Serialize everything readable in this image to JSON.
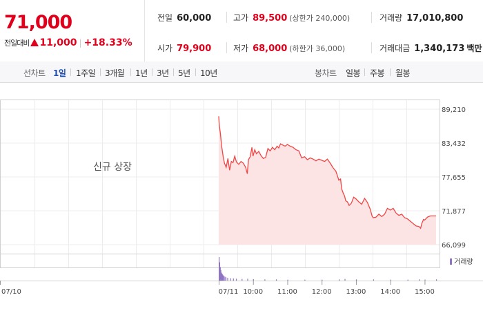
{
  "header": {
    "current_price": "71,000",
    "change_label": "전일대비",
    "change_amount": "11,000",
    "change_rate": "+18.33%",
    "stats": {
      "prev_close": {
        "label": "전일",
        "value": "60,000"
      },
      "high": {
        "label": "고가",
        "value": "89,500",
        "sub": "(상한가 240,000)"
      },
      "volume": {
        "label": "거래량",
        "value": "17,010,800"
      },
      "open": {
        "label": "시가",
        "value": "79,900"
      },
      "low": {
        "label": "저가",
        "value": "68,000",
        "sub": "(하한가 36,000)"
      },
      "trade_value": {
        "label": "거래대금",
        "value": "1,340,173",
        "unit": "백만"
      }
    }
  },
  "tabs": {
    "line_label": "선차트",
    "line_items": [
      "1일",
      "1주일",
      "3개월",
      "1년",
      "3년",
      "5년",
      "10년"
    ],
    "active": "1일",
    "candle_label": "봉차트",
    "candle_items": [
      "일봉",
      "주봉",
      "월봉"
    ]
  },
  "colors": {
    "up": "#e0001b",
    "line": "#f04545",
    "fill": "#fde4e4",
    "volume": "#8f74c4",
    "active_tab": "#1f4eb4"
  },
  "chart_data": {
    "type": "area",
    "annotation": "신규 상장",
    "y_ticks": [
      "89,210",
      "83,432",
      "77,655",
      "71,877",
      "66,099"
    ],
    "ylim": [
      66099,
      89210
    ],
    "x_ticks": [
      "07/10",
      "07/11",
      "10:00",
      "11:00",
      "12:00",
      "13:00",
      "14:00",
      "15:00"
    ],
    "grid": true,
    "legend": "거래량",
    "price_series": [
      [
        "09:00",
        88000
      ],
      [
        "09:01",
        86500
      ],
      [
        "09:03",
        85000
      ],
      [
        "09:05",
        83000
      ],
      [
        "09:08",
        81000
      ],
      [
        "09:10",
        80000
      ],
      [
        "09:13",
        79300
      ],
      [
        "09:16",
        80800
      ],
      [
        "09:19",
        78800
      ],
      [
        "09:22",
        80300
      ],
      [
        "09:25",
        80100
      ],
      [
        "09:28",
        81200
      ],
      [
        "09:31",
        80200
      ],
      [
        "09:35",
        79800
      ],
      [
        "09:39",
        80300
      ],
      [
        "09:43",
        80000
      ],
      [
        "09:47",
        79300
      ],
      [
        "09:50",
        78200
      ],
      [
        "09:52",
        80600
      ],
      [
        "09:55",
        81100
      ],
      [
        "09:58",
        82700
      ],
      [
        "10:00",
        81200
      ],
      [
        "10:03",
        82300
      ],
      [
        "10:06",
        81600
      ],
      [
        "10:10",
        82000
      ],
      [
        "10:14",
        81300
      ],
      [
        "10:18",
        80800
      ],
      [
        "10:22",
        81000
      ],
      [
        "10:26",
        82500
      ],
      [
        "10:30",
        82100
      ],
      [
        "10:34",
        82700
      ],
      [
        "10:38",
        82300
      ],
      [
        "10:42",
        82900
      ],
      [
        "10:45",
        82600
      ],
      [
        "10:48",
        83300
      ],
      [
        "10:52",
        83100
      ],
      [
        "10:56",
        82900
      ],
      [
        "11:00",
        83200
      ],
      [
        "11:05",
        82900
      ],
      [
        "11:10",
        82700
      ],
      [
        "11:15",
        82300
      ],
      [
        "11:20",
        82100
      ],
      [
        "11:25",
        80900
      ],
      [
        "11:30",
        81100
      ],
      [
        "11:35",
        80600
      ],
      [
        "11:40",
        80900
      ],
      [
        "11:45",
        80700
      ],
      [
        "11:50",
        80400
      ],
      [
        "11:55",
        80700
      ],
      [
        "12:00",
        80500
      ],
      [
        "12:05",
        80300
      ],
      [
        "12:10",
        80700
      ],
      [
        "12:15",
        80000
      ],
      [
        "12:20",
        79200
      ],
      [
        "12:25",
        78600
      ],
      [
        "12:30",
        77100
      ],
      [
        "12:33",
        77300
      ],
      [
        "12:35",
        75600
      ],
      [
        "12:38",
        74800
      ],
      [
        "12:40",
        74400
      ],
      [
        "12:42",
        73600
      ],
      [
        "12:45",
        73400
      ],
      [
        "12:48",
        72800
      ],
      [
        "12:52",
        73200
      ],
      [
        "12:56",
        74200
      ],
      [
        "13:00",
        73900
      ],
      [
        "13:05",
        73400
      ],
      [
        "13:10",
        73000
      ],
      [
        "13:15",
        74000
      ],
      [
        "13:20",
        73300
      ],
      [
        "13:25",
        72100
      ],
      [
        "13:28",
        71000
      ],
      [
        "13:30",
        70700
      ],
      [
        "13:35",
        70800
      ],
      [
        "13:40",
        71300
      ],
      [
        "13:45",
        70900
      ],
      [
        "13:50",
        71300
      ],
      [
        "13:55",
        72300
      ],
      [
        "14:00",
        72000
      ],
      [
        "14:05",
        72300
      ],
      [
        "14:10",
        71500
      ],
      [
        "14:15",
        71100
      ],
      [
        "14:20",
        71300
      ],
      [
        "14:25",
        70700
      ],
      [
        "14:30",
        70500
      ],
      [
        "14:35",
        70100
      ],
      [
        "14:40",
        69700
      ],
      [
        "14:45",
        69300
      ],
      [
        "14:50",
        69200
      ],
      [
        "14:53",
        68900
      ],
      [
        "14:55",
        69700
      ],
      [
        "14:58",
        70400
      ],
      [
        "15:00",
        70300
      ],
      [
        "15:05",
        70800
      ],
      [
        "15:10",
        71000
      ],
      [
        "15:15",
        71000
      ],
      [
        "15:20",
        71000
      ]
    ],
    "volume_series": [
      [
        "09:00",
        100
      ],
      [
        "09:01",
        78
      ],
      [
        "09:02",
        58
      ],
      [
        "09:03",
        44
      ],
      [
        "09:04",
        34
      ],
      [
        "09:05",
        30
      ],
      [
        "09:06",
        26
      ],
      [
        "09:07",
        22
      ],
      [
        "09:08",
        20
      ],
      [
        "09:10",
        17
      ],
      [
        "09:12",
        14
      ],
      [
        "09:15",
        12
      ],
      [
        "09:20",
        10
      ],
      [
        "09:25",
        9
      ],
      [
        "09:30",
        8
      ],
      [
        "09:40",
        7
      ],
      [
        "09:50",
        8
      ],
      [
        "10:00",
        6
      ],
      [
        "10:20",
        5
      ],
      [
        "10:40",
        5
      ],
      [
        "11:00",
        4
      ],
      [
        "11:30",
        4
      ],
      [
        "12:00",
        4
      ],
      [
        "12:30",
        5
      ],
      [
        "12:40",
        7
      ],
      [
        "13:00",
        5
      ],
      [
        "13:30",
        5
      ],
      [
        "14:00",
        4
      ],
      [
        "14:30",
        4
      ],
      [
        "14:50",
        5
      ],
      [
        "15:00",
        4
      ],
      [
        "15:20",
        5
      ]
    ]
  }
}
